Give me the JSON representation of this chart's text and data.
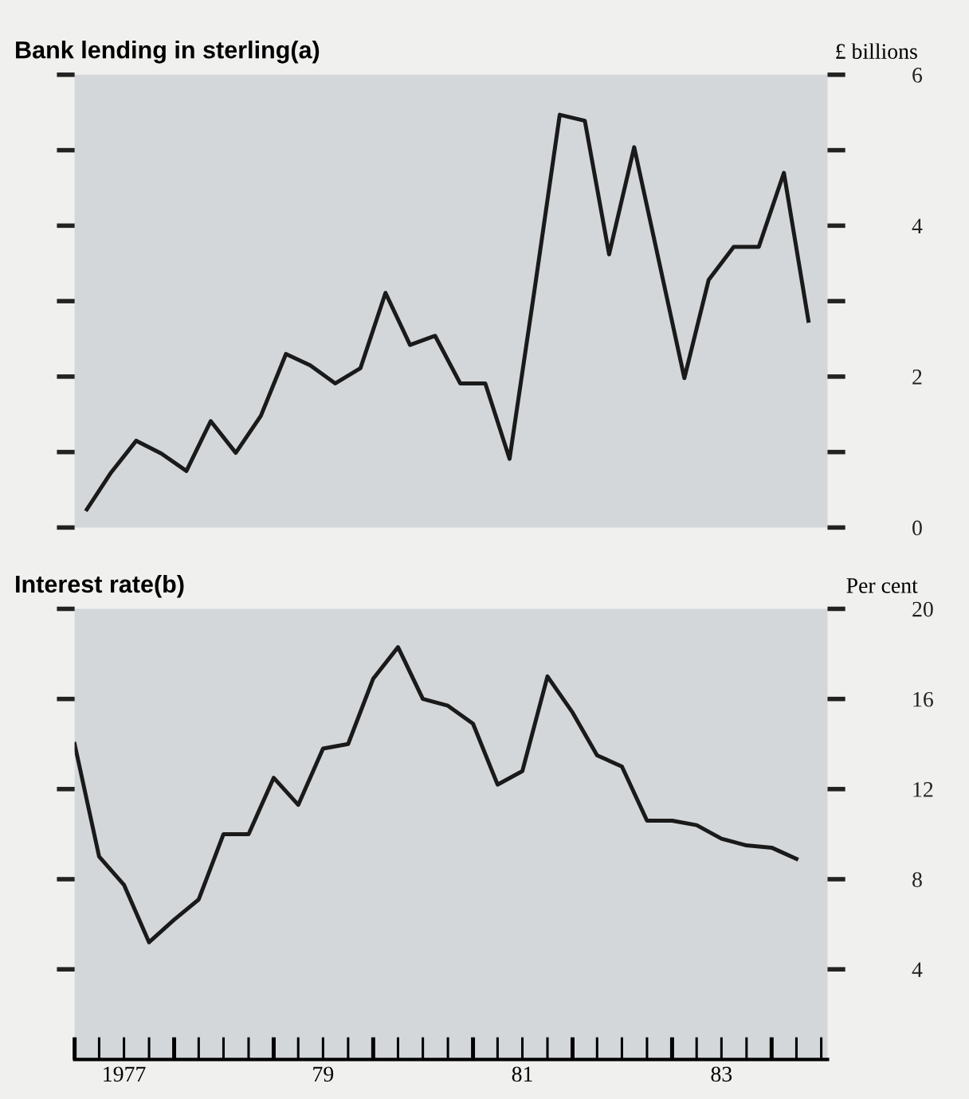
{
  "chart_data": [
    {
      "type": "line",
      "title": "Bank lending in sterling(a)",
      "ylabel": "£ billions",
      "xlim": [
        "1977-01-01",
        "1984-07-24"
      ],
      "ylim": [
        0,
        6
      ],
      "yticks": [
        0,
        {
          "value": 1,
          "label": null
        },
        2,
        {
          "value": 3,
          "label": null
        },
        4,
        {
          "value": 5,
          "label": null
        },
        6
      ],
      "tick_labels": "y",
      "grid": false,
      "legend": false,
      "series": [
        {
          "color": "#1a1a1a",
          "x": [
            "1977-02-15",
            "1977-05-15",
            "1977-08-15",
            "1977-11-15",
            "1978-02-15",
            "1978-05-15",
            "1978-08-15",
            "1978-11-15",
            "1979-02-15",
            "1979-05-15",
            "1979-08-15",
            "1979-11-15",
            "1980-02-15",
            "1980-05-15",
            "1980-08-15",
            "1980-11-15",
            "1981-02-15",
            "1981-05-15",
            "1981-08-15",
            "1981-11-15",
            "1982-02-15",
            "1982-05-15",
            "1982-08-15",
            "1982-11-15",
            "1983-02-15",
            "1983-05-15",
            "1983-08-15",
            "1983-11-15",
            "1984-02-15",
            "1984-05-15"
          ],
          "values": [
            0.24,
            0.73,
            1.15,
            0.98,
            0.75,
            1.41,
            0.99,
            1.48,
            2.3,
            2.15,
            1.91,
            2.11,
            3.11,
            2.42,
            2.54,
            1.91,
            1.91,
            0.91,
            3.16,
            5.47,
            5.39,
            3.62,
            5.04,
            3.51,
            1.98,
            3.28,
            3.72,
            3.72,
            4.7,
            2.74
          ]
        }
      ]
    },
    {
      "type": "line",
      "title": "Interest rate(b)",
      "ylabel": "Per cent",
      "xlim": [
        "1977-01-01",
        "1984-07-24"
      ],
      "ylim": [
        0,
        20
      ],
      "yticks": [
        4,
        8,
        12,
        16,
        20
      ],
      "xticks": [
        {
          "value": "1977-01-01",
          "label": null
        },
        {
          "value": "1977-04-01",
          "label": null
        },
        {
          "value": "1977-07-01",
          "label": "1977"
        },
        {
          "value": "1977-10-01",
          "label": null
        },
        {
          "value": "1978-01-01",
          "label": null
        },
        {
          "value": "1978-04-01",
          "label": null
        },
        {
          "value": "1978-07-01",
          "label": null
        },
        {
          "value": "1978-10-01",
          "label": null
        },
        {
          "value": "1979-01-01",
          "label": null
        },
        {
          "value": "1979-04-01",
          "label": null
        },
        {
          "value": "1979-07-01",
          "label": "79"
        },
        {
          "value": "1979-10-01",
          "label": null
        },
        {
          "value": "1980-01-01",
          "label": null
        },
        {
          "value": "1980-04-01",
          "label": null
        },
        {
          "value": "1980-07-01",
          "label": null
        },
        {
          "value": "1980-10-01",
          "label": null
        },
        {
          "value": "1981-01-01",
          "label": null
        },
        {
          "value": "1981-04-01",
          "label": null
        },
        {
          "value": "1981-07-01",
          "label": "81"
        },
        {
          "value": "1981-10-01",
          "label": null
        },
        {
          "value": "1982-01-01",
          "label": null
        },
        {
          "value": "1982-04-01",
          "label": null
        },
        {
          "value": "1982-07-01",
          "label": null
        },
        {
          "value": "1982-10-01",
          "label": null
        },
        {
          "value": "1983-01-01",
          "label": null
        },
        {
          "value": "1983-04-01",
          "label": null
        },
        {
          "value": "1983-07-01",
          "label": "83"
        },
        {
          "value": "1983-10-01",
          "label": null
        },
        {
          "value": "1984-01-01",
          "label": null
        },
        {
          "value": "1984-04-01",
          "label": null
        },
        {
          "value": "1984-07-01",
          "label": null
        }
      ],
      "grid": false,
      "legend": false,
      "series": [
        {
          "color": "#1a1a1a",
          "x": [
            "1977-01-01",
            "1977-04-01",
            "1977-07-01",
            "1977-10-01",
            "1978-01-01",
            "1978-04-01",
            "1978-07-01",
            "1978-10-01",
            "1979-01-01",
            "1979-04-01",
            "1979-07-01",
            "1979-10-01",
            "1980-01-01",
            "1980-04-01",
            "1980-07-01",
            "1980-10-01",
            "1981-01-01",
            "1981-04-01",
            "1981-07-01",
            "1981-10-01",
            "1982-01-01",
            "1982-04-01",
            "1982-07-01",
            "1982-10-01",
            "1983-01-01",
            "1983-04-01",
            "1983-07-01",
            "1983-10-01",
            "1984-01-01",
            "1984-04-01"
          ],
          "values": [
            14.0,
            9.0,
            7.75,
            5.2,
            6.2,
            7.1,
            10.0,
            10.0,
            12.5,
            11.3,
            13.8,
            14.0,
            16.9,
            18.3,
            16.0,
            15.7,
            14.9,
            12.2,
            12.8,
            17.0,
            15.4,
            13.5,
            13.0,
            10.6,
            10.6,
            10.4,
            9.8,
            9.5,
            9.4,
            8.9
          ]
        }
      ]
    }
  ]
}
